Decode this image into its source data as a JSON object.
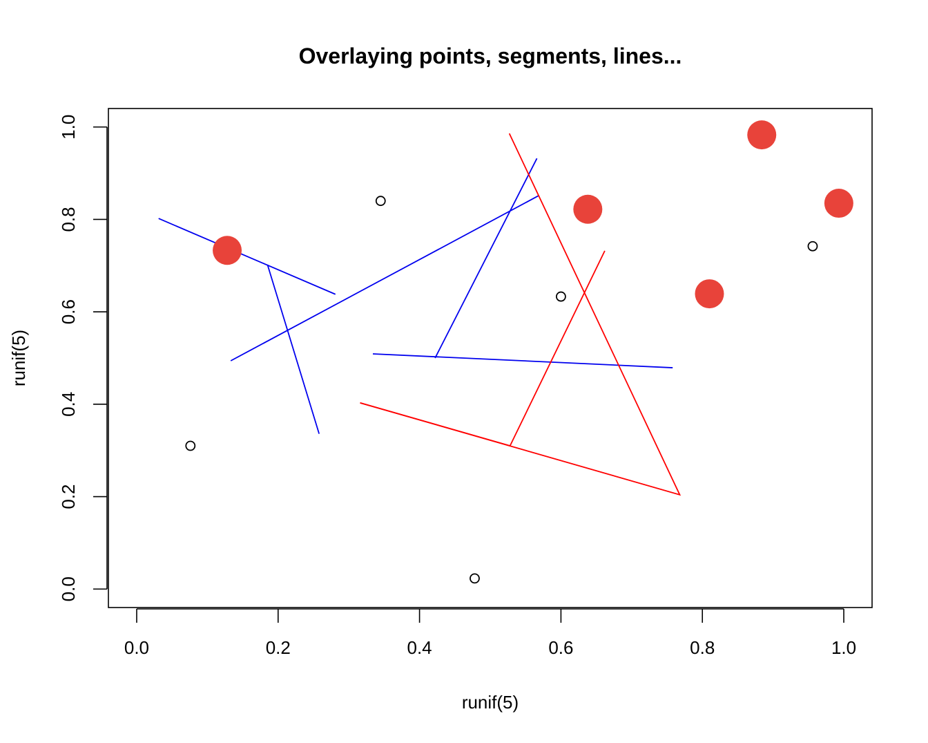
{
  "chart_data": {
    "type": "scatter",
    "title": "Overlaying points, segments, lines...",
    "xlabel": "runif(5)",
    "ylabel": "runif(5)",
    "xlim": [
      -0.04,
      1.04
    ],
    "ylim": [
      -0.04,
      1.04
    ],
    "xticks": [
      "0.0",
      "0.2",
      "0.4",
      "0.6",
      "0.8",
      "1.0"
    ],
    "xtick_values": [
      0,
      0.2,
      0.4,
      0.6,
      0.8,
      1.0
    ],
    "yticks": [
      "0.0",
      "0.2",
      "0.4",
      "0.6",
      "0.8",
      "1.0"
    ],
    "ytick_values": [
      0,
      0.2,
      0.4,
      0.6,
      0.8,
      1.0
    ],
    "grid": false,
    "colors": {
      "open_points": "#000000",
      "filled_points": "#e8433a",
      "blue": "#0000ee",
      "red": "#ff0000"
    },
    "open_points": {
      "x": [
        0.076,
        0.345,
        0.478,
        0.6,
        0.956
      ],
      "y": [
        0.31,
        0.84,
        0.023,
        0.633,
        0.742
      ]
    },
    "filled_points": {
      "x": [
        0.128,
        0.638,
        0.81,
        0.884,
        0.993
      ],
      "y": [
        0.733,
        0.822,
        0.639,
        0.983,
        0.835
      ]
    },
    "blue_segments": [
      {
        "x0": 0.031,
        "y0": 0.802,
        "x1": 0.281,
        "y1": 0.638
      },
      {
        "x0": 0.185,
        "y0": 0.702,
        "x1": 0.258,
        "y1": 0.336
      },
      {
        "x0": 0.133,
        "y0": 0.494,
        "x1": 0.568,
        "y1": 0.851
      },
      {
        "x0": 0.422,
        "y0": 0.5,
        "x1": 0.566,
        "y1": 0.932
      },
      {
        "x0": 0.334,
        "y0": 0.509,
        "x1": 0.758,
        "y1": 0.479
      }
    ],
    "red_lines": [
      {
        "x": [
          0.316,
          0.528,
          0.662
        ],
        "y": [
          0.403,
          0.31,
          0.732
        ]
      },
      {
        "x": [
          0.527,
          0.768,
          0.316
        ],
        "y": [
          0.986,
          0.204,
          0.403
        ]
      }
    ]
  }
}
